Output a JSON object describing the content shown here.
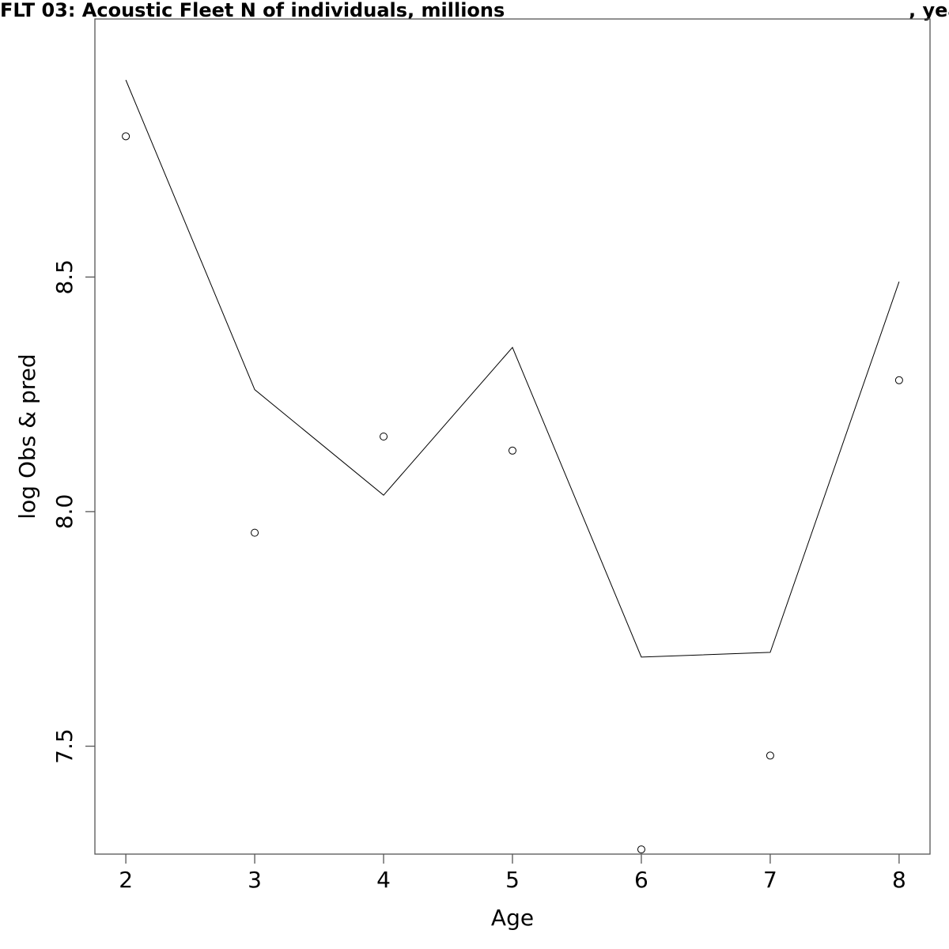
{
  "chart_data": {
    "type": "line",
    "title_left": "FLT 03: Acoustic Fleet   N of individuals, millions",
    "title_right": ", yea",
    "xlabel": "Age",
    "ylabel": "log Obs & pred",
    "x": [
      2,
      3,
      4,
      5,
      6,
      7,
      8
    ],
    "xlim": [
      1.76,
      8.24
    ],
    "ylim": [
      7.27,
      9.05
    ],
    "x_ticks": [
      2,
      3,
      4,
      5,
      6,
      7,
      8
    ],
    "x_tick_labels": [
      "2",
      "3",
      "4",
      "5",
      "6",
      "7",
      "8"
    ],
    "y_ticks": [
      7.5,
      8.0,
      8.5
    ],
    "y_tick_labels": [
      "7.5",
      "8.0",
      "8.5"
    ],
    "series": [
      {
        "style": "line",
        "values": [
          8.92,
          8.26,
          8.035,
          8.35,
          7.69,
          7.7,
          8.49
        ]
      },
      {
        "style": "points",
        "values": [
          8.8,
          7.955,
          8.16,
          8.13,
          7.28,
          7.48,
          8.28
        ]
      }
    ],
    "grid": false,
    "legend": "none"
  }
}
